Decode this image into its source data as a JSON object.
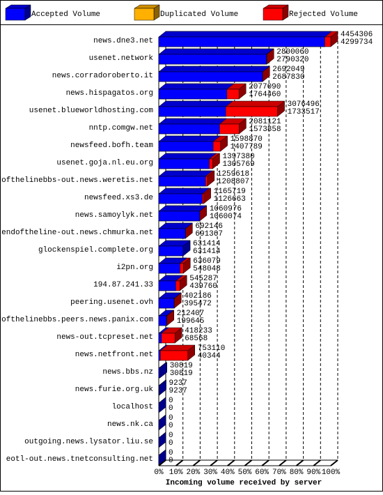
{
  "chart_data": {
    "type": "bar3d",
    "xlabel": "Incoming volume received by server",
    "categories": [
      "news.dne3.net",
      "usenet.network",
      "news.corradoroberto.it",
      "news.hispagatos.org",
      "usenet.blueworldhosting.com",
      "nntp.comgw.net",
      "newsfeed.bofh.team",
      "usenet.goja.nl.eu.org",
      "endofthelinebbs-out.news.weretis.net",
      "newsfeed.xs3.de",
      "news.samoylyk.net",
      "endoftheline-out.news.chmurka.net",
      "glockenspiel.complete.org",
      "i2pn.org",
      "194.87.241.33",
      "peering.usenet.ovh",
      "endofthelinebbs.peers.news.panix.com",
      "news-out.tcpreset.net",
      "news.netfront.net",
      "news.bbs.nz",
      "news.furie.org.uk",
      "localhost",
      "news.nk.ca",
      "outgoing.news.lysator.liu.se",
      "eotl-out.news.tnetconsulting.net"
    ],
    "series": [
      {
        "name": "Accepted Volume",
        "color": "#0000ff",
        "values": [
          4299734,
          2790320,
          2687830,
          1764460,
          1733517,
          1573858,
          1407789,
          1305769,
          1208807,
          1126663,
          1060074,
          691367,
          631414,
          548048,
          439760,
          395472,
          199645,
          68568,
          40344,
          30819,
          9237,
          0,
          0,
          0,
          0
        ]
      },
      {
        "name": "Duplicated Volume",
        "color": "#ffb000",
        "values": [
          null,
          null,
          null,
          null,
          null,
          null,
          null,
          null,
          null,
          null,
          null,
          null,
          null,
          null,
          null,
          null,
          null,
          null,
          null,
          null,
          null,
          null,
          null,
          null,
          null
        ]
      },
      {
        "name": "Rejected Volume",
        "color": "#ff0000",
        "values": [
          4454306,
          2800060,
          2692049,
          2077090,
          3076496,
          2081121,
          1598870,
          1397380,
          1259618,
          1165719,
          1060976,
          692146,
          631414,
          636079,
          545287,
          402186,
          212407,
          418233,
          753110,
          30819,
          9237,
          0,
          0,
          0,
          0
        ]
      }
    ],
    "xlim": [
      0,
      4454306
    ],
    "xticks": [
      {
        "value": 0,
        "label": "0%"
      },
      {
        "value": 445430.6,
        "label": "10%"
      },
      {
        "value": 890861.2,
        "label": "20%"
      },
      {
        "value": 1336291.8,
        "label": "30%"
      },
      {
        "value": 1781722.4,
        "label": "40%"
      },
      {
        "value": 2227153,
        "label": "50%"
      },
      {
        "value": 2672583.6,
        "label": "60%"
      },
      {
        "value": 3118014.2,
        "label": "70%"
      },
      {
        "value": 3563444.8,
        "label": "80%"
      },
      {
        "value": 4008875.4,
        "label": "90%"
      },
      {
        "value": 4454306,
        "label": "100%"
      }
    ],
    "grid": true
  }
}
